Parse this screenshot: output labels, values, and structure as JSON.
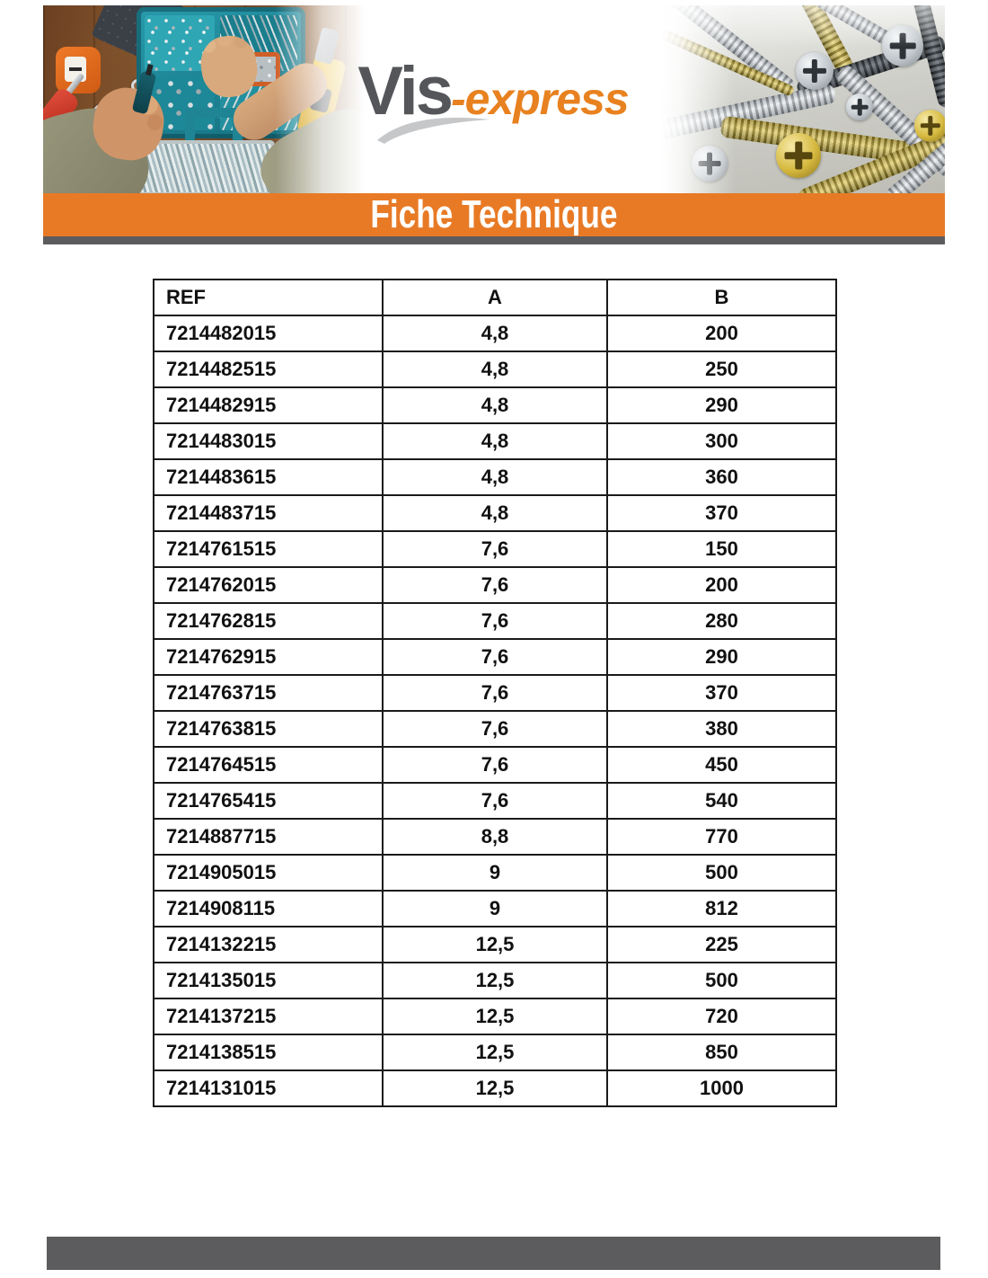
{
  "colors": {
    "accent-orange": "#e87a26",
    "logo-gray": "#54565a",
    "logo-orange": "#e8811f",
    "swoosh-gray": "#c5c7c9",
    "bar-gray": "#5c5c5e",
    "table-border": "#1a1a1a",
    "text-black": "#111111"
  },
  "header": {
    "logo": {
      "part1": "Vis",
      "part2": "-express"
    },
    "banner_label": "Fiche Technique",
    "left_photo": "workbench-with-screw-organizer-and-tools-photo",
    "right_photo": "pile-of-screws-macro-photo"
  },
  "table": {
    "columns": [
      "REF",
      "A",
      "B"
    ],
    "rows": [
      [
        "7214482015",
        "4,8",
        "200"
      ],
      [
        "7214482515",
        "4,8",
        "250"
      ],
      [
        "7214482915",
        "4,8",
        "290"
      ],
      [
        "7214483015",
        "4,8",
        "300"
      ],
      [
        "7214483615",
        "4,8",
        "360"
      ],
      [
        "7214483715",
        "4,8",
        "370"
      ],
      [
        "7214761515",
        "7,6",
        "150"
      ],
      [
        "7214762015",
        "7,6",
        "200"
      ],
      [
        "7214762815",
        "7,6",
        "280"
      ],
      [
        "7214762915",
        "7,6",
        "290"
      ],
      [
        "7214763715",
        "7,6",
        "370"
      ],
      [
        "7214763815",
        "7,6",
        "380"
      ],
      [
        "7214764515",
        "7,6",
        "450"
      ],
      [
        "7214765415",
        "7,6",
        "540"
      ],
      [
        "7214887715",
        "8,8",
        "770"
      ],
      [
        "7214905015",
        "9",
        "500"
      ],
      [
        "7214908115",
        "9",
        "812"
      ],
      [
        "7214132215",
        "12,5",
        "225"
      ],
      [
        "7214135015",
        "12,5",
        "500"
      ],
      [
        "7214137215",
        "12,5",
        "720"
      ],
      [
        "7214138515",
        "12,5",
        "850"
      ],
      [
        "7214131015",
        "12,5",
        "1000"
      ]
    ]
  }
}
